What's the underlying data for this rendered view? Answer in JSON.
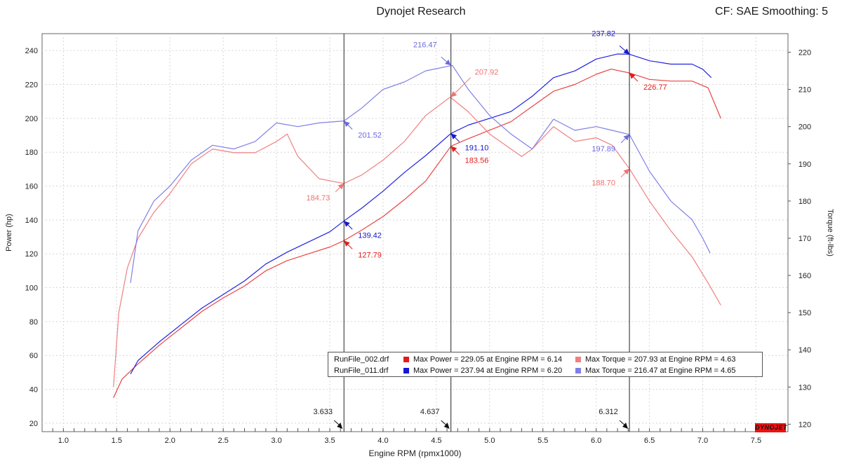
{
  "header": {
    "title": "Dynojet Research",
    "cf_info": "CF: SAE Smoothing: 5"
  },
  "colors": {
    "run002": "#e84444",
    "run002_torque": "#f08080",
    "run011": "#2222dd",
    "run011_torque": "#7f7fe6",
    "grid": "#d6d6d6",
    "cursor": "#222222"
  },
  "legend": {
    "rows": [
      {
        "file": "RunFile_002.drf",
        "max_power": "Max Power = 229.05 at Engine RPM = 6.14",
        "max_torque": "Max Torque = 207.93 at Engine RPM = 4.63",
        "power_color": "#e51b1b",
        "torque_color": "#f08080"
      },
      {
        "file": "RunFile_011.drf",
        "max_power": "Max Power = 237.94 at Engine RPM = 6.20",
        "max_torque": "Max Torque = 216.47 at Engine RPM = 4.65",
        "power_color": "#1616d8",
        "torque_color": "#7f7fe6"
      }
    ]
  },
  "logo_text": "DYNOJET",
  "chart_data": {
    "type": "line",
    "xlabel": "Engine RPM (rpmx1000)",
    "ylabel": "Power (hp)",
    "y2label": "Torque (ft-lbs)",
    "xlim": [
      0.8,
      7.8
    ],
    "ylim": [
      15,
      250
    ],
    "y2lim": [
      118,
      225
    ],
    "x_ticks": [
      "1.0",
      "1.5",
      "2.0",
      "2.5",
      "3.0",
      "3.5",
      "4.0",
      "4.5",
      "5.0",
      "5.5",
      "6.0",
      "6.5",
      "7.0",
      "7.5"
    ],
    "y_ticks": [
      "20",
      "40",
      "60",
      "80",
      "100",
      "120",
      "140",
      "160",
      "180",
      "200",
      "220",
      "240"
    ],
    "y2_ticks": [
      "120",
      "130",
      "140",
      "150",
      "160",
      "170",
      "180",
      "190",
      "200",
      "210",
      "220"
    ],
    "grid": true,
    "legend_position": "bottom-right",
    "cursors": [
      {
        "x": 3.633,
        "label": "3.633"
      },
      {
        "x": 4.637,
        "label": "4.637"
      },
      {
        "x": 6.312,
        "label": "6.312"
      }
    ],
    "series": [
      {
        "name": "RunFile_002.drf Power",
        "axis": "left",
        "color": "#e84444",
        "x": [
          1.47,
          1.55,
          1.7,
          1.9,
          2.1,
          2.3,
          2.5,
          2.7,
          2.9,
          3.1,
          3.3,
          3.5,
          3.633,
          3.8,
          4.0,
          4.2,
          4.4,
          4.637,
          4.8,
          5.0,
          5.2,
          5.4,
          5.6,
          5.8,
          6.0,
          6.14,
          6.312,
          6.5,
          6.7,
          6.9,
          7.05,
          7.17
        ],
        "y": [
          35,
          46,
          55,
          66,
          76,
          86,
          94,
          101,
          110,
          116,
          120,
          124,
          127.79,
          134,
          142,
          152,
          163,
          183.56,
          188,
          193,
          198,
          207,
          216,
          220,
          226,
          229.05,
          226.77,
          223,
          222,
          222,
          218,
          200
        ]
      },
      {
        "name": "RunFile_011.drf Power",
        "axis": "left",
        "color": "#2222dd",
        "x": [
          1.63,
          1.7,
          1.9,
          2.1,
          2.3,
          2.5,
          2.7,
          2.9,
          3.1,
          3.3,
          3.5,
          3.633,
          3.8,
          4.0,
          4.2,
          4.4,
          4.637,
          4.8,
          5.0,
          5.2,
          5.4,
          5.6,
          5.8,
          6.0,
          6.2,
          6.312,
          6.5,
          6.7,
          6.9,
          7.0,
          7.08
        ],
        "y": [
          49,
          57,
          68,
          78,
          88,
          96,
          104,
          114,
          121,
          127,
          133,
          139.42,
          147,
          157,
          168,
          178,
          191.1,
          196,
          200,
          204,
          213,
          224,
          228,
          235,
          237.94,
          237.82,
          234,
          232,
          232,
          229,
          224
        ]
      },
      {
        "name": "RunFile_002.drf Torque",
        "axis": "right",
        "color": "#f08080",
        "x": [
          1.47,
          1.52,
          1.6,
          1.7,
          1.85,
          2.0,
          2.2,
          2.4,
          2.6,
          2.8,
          3.0,
          3.1,
          3.2,
          3.4,
          3.633,
          3.8,
          4.0,
          4.2,
          4.4,
          4.63,
          4.8,
          5.0,
          5.2,
          5.3,
          5.4,
          5.6,
          5.8,
          6.0,
          6.15,
          6.312,
          6.5,
          6.7,
          6.9,
          7.05,
          7.17
        ],
        "y": [
          130,
          150,
          162,
          170,
          177,
          182,
          190,
          194,
          193,
          193,
          196,
          198,
          192,
          186,
          184.73,
          187,
          191,
          196,
          203,
          207.93,
          204,
          198,
          194,
          192,
          194,
          200,
          196,
          197,
          195,
          188.7,
          180,
          172,
          165,
          158,
          152
        ]
      },
      {
        "name": "RunFile_011.drf Torque",
        "axis": "right",
        "color": "#7f7fe6",
        "x": [
          1.63,
          1.7,
          1.85,
          2.0,
          2.2,
          2.4,
          2.6,
          2.8,
          3.0,
          3.2,
          3.4,
          3.633,
          3.8,
          4.0,
          4.2,
          4.4,
          4.65,
          4.8,
          5.0,
          5.2,
          5.4,
          5.6,
          5.8,
          6.0,
          6.15,
          6.312,
          6.5,
          6.7,
          6.9,
          7.0,
          7.07
        ],
        "y": [
          158,
          172,
          180,
          184,
          191,
          195,
          194,
          196,
          201,
          200,
          201,
          201.52,
          205,
          210,
          212,
          215,
          216.47,
          210,
          203,
          198,
          194,
          202,
          199,
          200,
          199,
          197.89,
          188,
          180,
          175,
          170,
          166
        ]
      }
    ],
    "annotations": [
      {
        "x": 3.633,
        "y": 127.79,
        "axis": "left",
        "label": "127.79",
        "color": "#e51b1b",
        "side": "right"
      },
      {
        "x": 3.633,
        "y": 139.42,
        "axis": "left",
        "label": "139.42",
        "color": "#1616c8",
        "side": "right"
      },
      {
        "x": 3.633,
        "y": 184.73,
        "axis": "right",
        "label": "184.73",
        "color": "#f07070",
        "side": "left"
      },
      {
        "x": 3.633,
        "y": 201.52,
        "axis": "right",
        "label": "201.52",
        "color": "#6a6ae0",
        "side": "right"
      },
      {
        "x": 4.637,
        "y": 183.56,
        "axis": "left",
        "label": "183.56",
        "color": "#e51b1b",
        "side": "right"
      },
      {
        "x": 4.637,
        "y": 191.1,
        "axis": "left",
        "label": "191.10",
        "color": "#1616c8",
        "side": "right"
      },
      {
        "x": 4.637,
        "y": 207.92,
        "axis": "right",
        "label": "207.92",
        "color": "#f07070",
        "side": "right-up"
      },
      {
        "x": 4.637,
        "y": 216.47,
        "axis": "right",
        "label": "216.47",
        "color": "#6a6ae0",
        "side": "left-up"
      },
      {
        "x": 6.312,
        "y": 226.77,
        "axis": "left",
        "label": "226.77",
        "color": "#e51b1b",
        "side": "right"
      },
      {
        "x": 6.312,
        "y": 237.82,
        "axis": "left",
        "label": "237.82",
        "color": "#1616c8",
        "side": "left-up"
      },
      {
        "x": 6.312,
        "y": 188.7,
        "axis": "right",
        "label": "188.70",
        "color": "#f07070",
        "side": "left"
      },
      {
        "x": 6.312,
        "y": 197.89,
        "axis": "right",
        "label": "197.89",
        "color": "#6a6ae0",
        "side": "left"
      }
    ]
  }
}
